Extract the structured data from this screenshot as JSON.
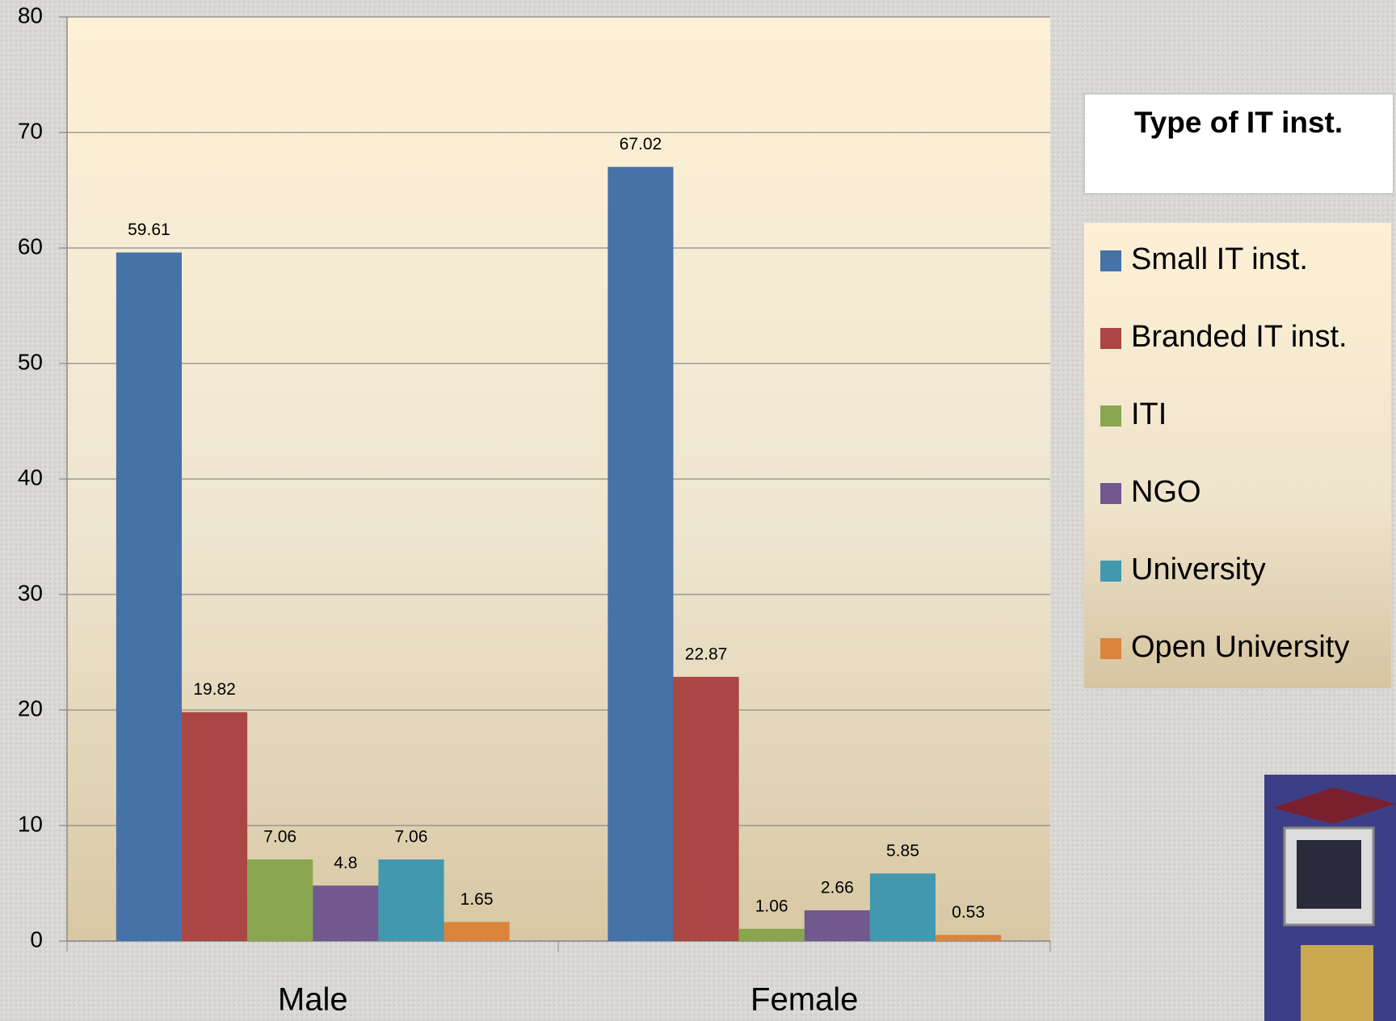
{
  "chart_data": {
    "type": "bar",
    "categories": [
      "Male",
      "Female"
    ],
    "series": [
      {
        "name": "Small IT inst.",
        "color": "#4572a7",
        "values": [
          59.61,
          67.02
        ]
      },
      {
        "name": "Branded IT inst.",
        "color": "#aa4643",
        "values": [
          19.82,
          22.87
        ]
      },
      {
        "name": "ITI",
        "color": "#89a54e",
        "values": [
          7.06,
          1.06
        ]
      },
      {
        "name": "NGO",
        "color": "#71588f",
        "values": [
          4.8,
          2.66
        ]
      },
      {
        "name": "University",
        "color": "#4198af",
        "values": [
          7.06,
          5.85
        ]
      },
      {
        "name": "Open University",
        "color": "#db843d",
        "values": [
          1.65,
          0.53
        ]
      }
    ],
    "ylim": [
      0,
      80
    ],
    "yticks": [
      0,
      10,
      20,
      30,
      40,
      50,
      60,
      70,
      80
    ],
    "grid": true,
    "legend": {
      "title": "Type of IT inst.",
      "position": "right"
    }
  }
}
